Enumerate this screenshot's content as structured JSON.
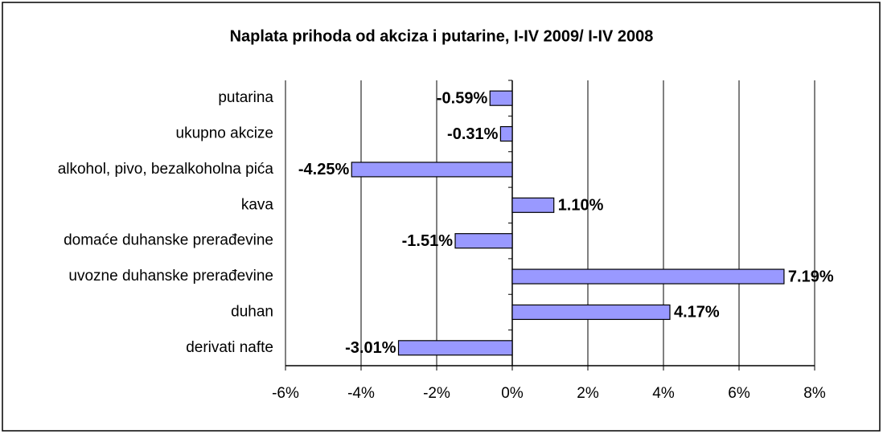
{
  "chart_data": {
    "type": "barh",
    "title": "Naplata prihoda od akciza i putarine, I-IV 2009/ I-IV 2008",
    "categories": [
      "putarina",
      "ukupno akcize",
      "alkohol, pivo, bezalkoholna pića",
      "kava",
      "domaće duhanske prerađevine",
      "uvozne duhanske prerađevine",
      "duhan",
      "derivati nafte"
    ],
    "values": [
      -0.59,
      -0.31,
      -4.25,
      1.1,
      -1.51,
      7.19,
      4.17,
      -3.01
    ],
    "value_labels": [
      "-0.59%",
      "-0.31%",
      "-4.25%",
      "1.10%",
      "-1.51%",
      "7.19%",
      "4.17%",
      "-3.01%"
    ],
    "color": "#9999ff",
    "xlim": [
      -6,
      8
    ],
    "xticks": [
      {
        "value": -6,
        "label": "-6%"
      },
      {
        "value": -4,
        "label": "-4%"
      },
      {
        "value": -2,
        "label": "-2%"
      },
      {
        "value": 0,
        "label": "0%"
      },
      {
        "value": 2,
        "label": "2%"
      },
      {
        "value": 4,
        "label": "4%"
      },
      {
        "value": 6,
        "label": "6%"
      },
      {
        "value": 8,
        "label": "8%"
      }
    ],
    "grid": true
  }
}
